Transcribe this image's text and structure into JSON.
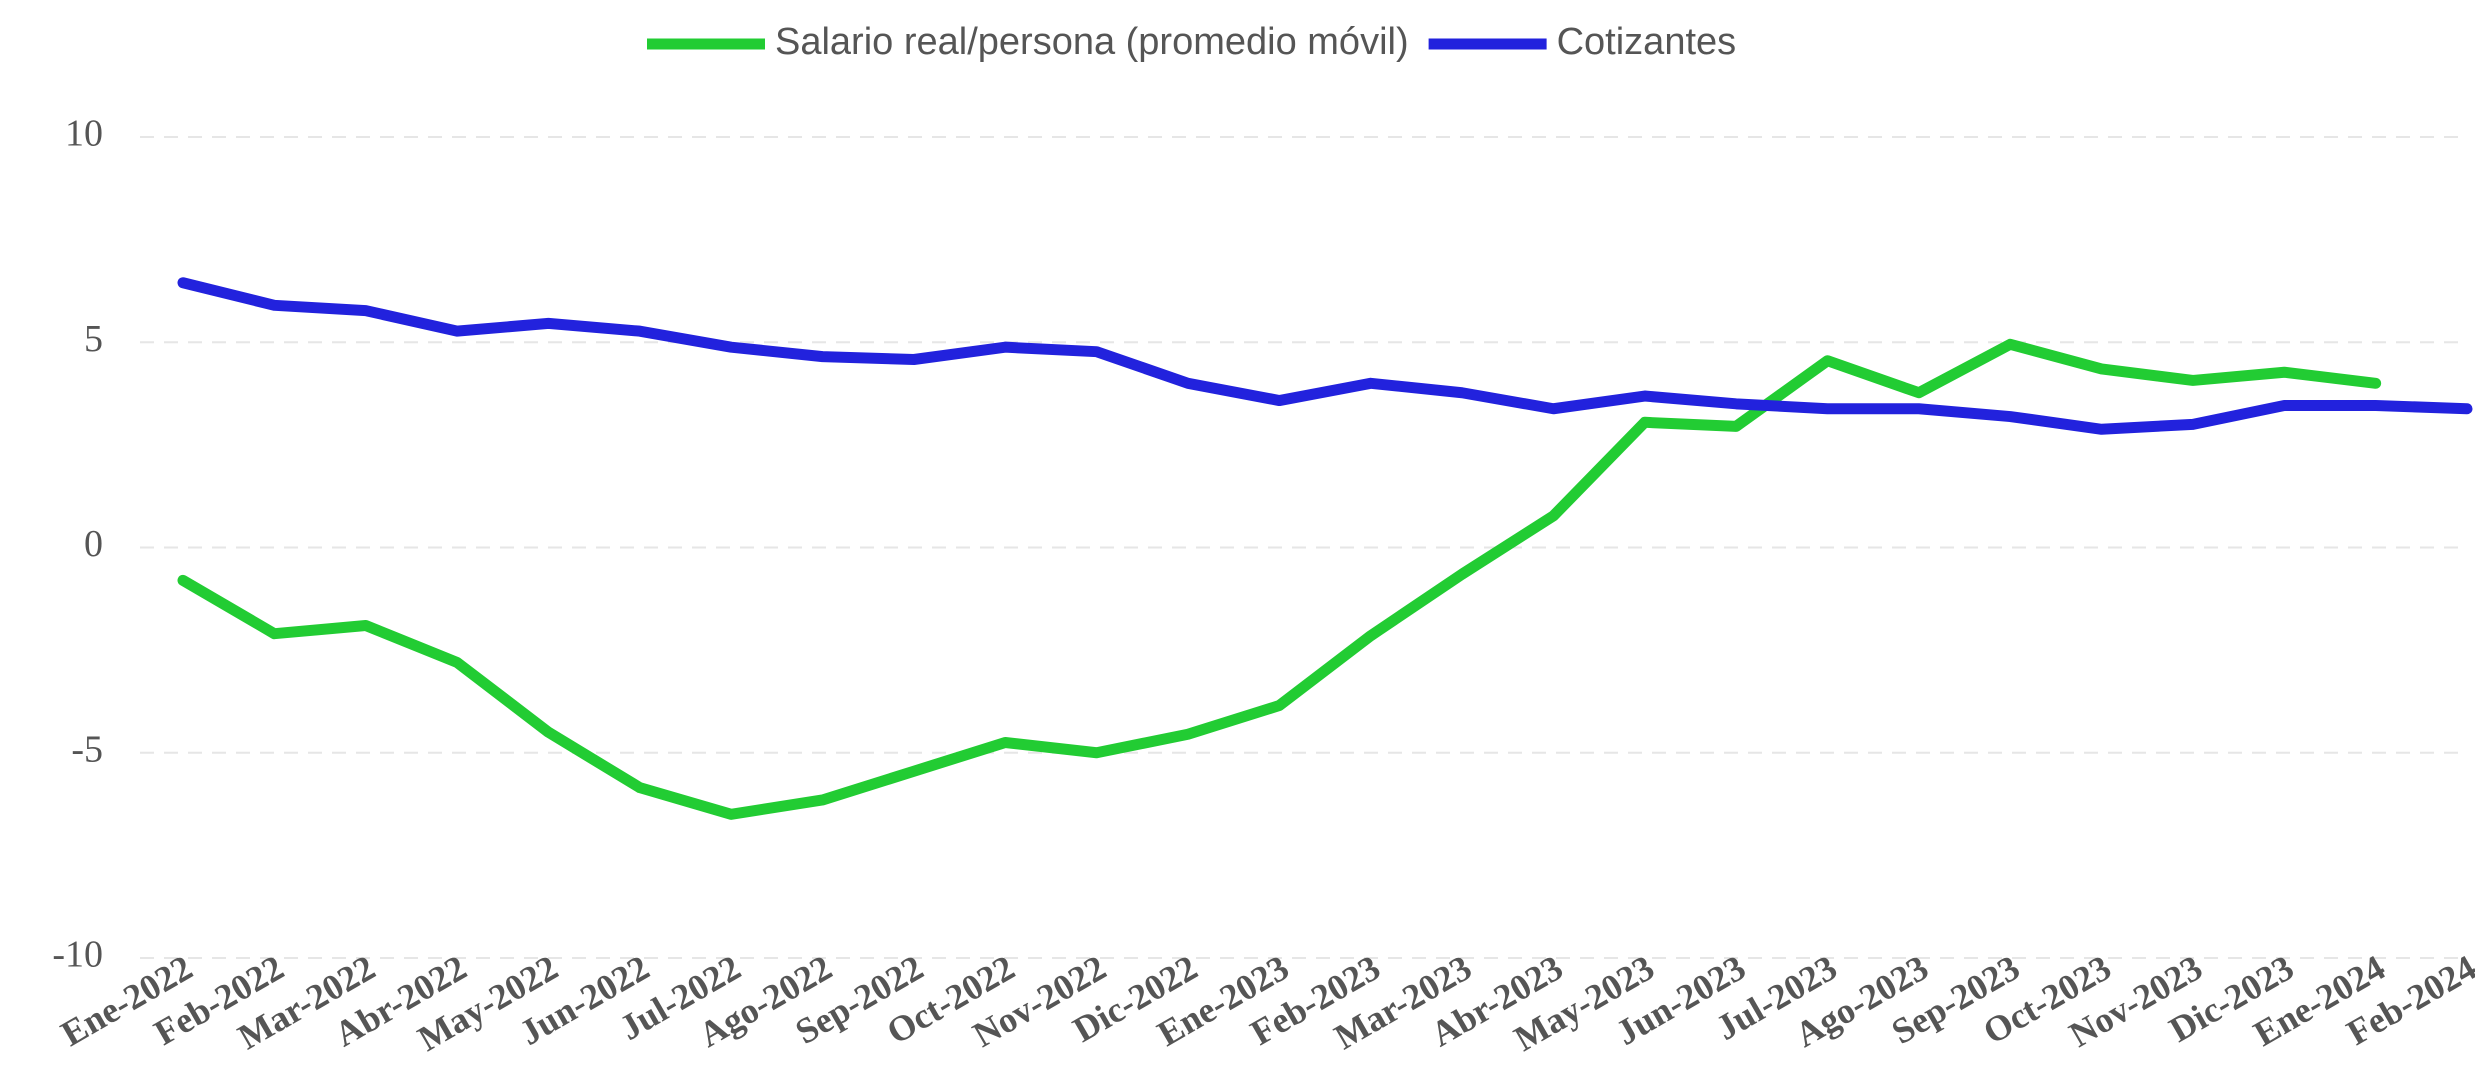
{
  "chart_data": {
    "type": "line",
    "categories": [
      "Ene-2022",
      "Feb-2022",
      "Mar-2022",
      "Abr-2022",
      "May-2022",
      "Jun-2022",
      "Jul-2022",
      "Ago-2022",
      "Sep-2022",
      "Oct-2022",
      "Nov-2022",
      "Dic-2022",
      "Ene-2023",
      "Feb-2023",
      "Mar-2023",
      "Abr-2023",
      "May-2023",
      "Jun-2023",
      "Jul-2023",
      "Ago-2023",
      "Sep-2023",
      "Oct-2023",
      "Nov-2023",
      "Dic-2023",
      "Ene-2024",
      "Feb-2024"
    ],
    "series": [
      {
        "name": "Salario real/persona (promedio móvil)",
        "color": "#22cc33",
        "values": [
          -0.8,
          -2.1,
          -1.9,
          -2.8,
          -4.5,
          -5.85,
          -6.5,
          -6.15,
          -5.45,
          -4.75,
          -5.0,
          -4.55,
          -3.85,
          -2.15,
          -0.65,
          0.77,
          3.05,
          2.95,
          4.55,
          3.77,
          4.95,
          4.35,
          4.07,
          4.27,
          4.0,
          null
        ]
      },
      {
        "name": "Cotizantes",
        "color": "#2222dd",
        "values": [
          6.45,
          5.9,
          5.77,
          5.27,
          5.46,
          5.27,
          4.88,
          4.65,
          4.58,
          4.88,
          4.77,
          4.0,
          3.58,
          4.0,
          3.77,
          3.38,
          3.69,
          3.5,
          3.38,
          3.38,
          3.19,
          2.88,
          3.0,
          3.46,
          3.46,
          3.38
        ]
      }
    ],
    "ylim": [
      -10,
      10
    ],
    "yticks": [
      -10,
      -5,
      0,
      5,
      10
    ],
    "grid": true,
    "legend": "top"
  }
}
